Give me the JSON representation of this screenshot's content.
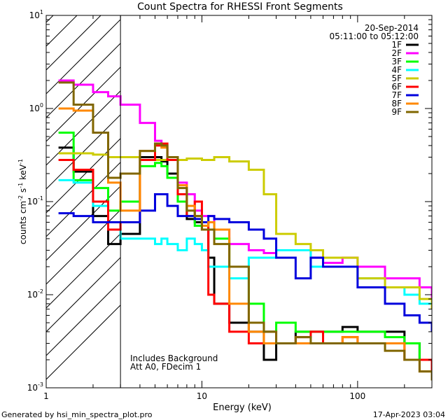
{
  "chart_data": {
    "type": "line",
    "title": "Count Spectra for RHESSI Front Segments",
    "date": "20-Sep-2014",
    "time_range": "05:11:00 to 05:12:00",
    "xlabel": "Energy (keV)",
    "ylabel_parts": {
      "a": "counts cm",
      "b": "-2",
      "c": " s",
      "d": "-1",
      "e": " keV",
      "f": "-1"
    },
    "xscale": "log",
    "yscale": "log",
    "xlim": [
      1,
      300
    ],
    "ylim": [
      0.001,
      10
    ],
    "x_ticks": [
      {
        "v": 1,
        "label": "1"
      },
      {
        "v": 10,
        "label": "10"
      },
      {
        "v": 100,
        "label": "100"
      }
    ],
    "y_ticks": [
      {
        "v": 0.001,
        "b": "10",
        "e": "-3"
      },
      {
        "v": 0.01,
        "b": "10",
        "e": "-2"
      },
      {
        "v": 0.1,
        "b": "10",
        "e": "-1"
      },
      {
        "v": 1,
        "b": "10",
        "e": "0"
      },
      {
        "v": 10,
        "b": "10",
        "e": "1"
      }
    ],
    "shaded_region_keV": [
      1,
      3
    ],
    "notes": [
      "Includes Background",
      "Att A0, FDecim 1"
    ],
    "energy_keV": [
      1.2,
      1.5,
      2,
      2.5,
      3,
      4,
      5,
      5.5,
      6,
      7,
      8,
      9,
      10,
      11,
      12,
      15,
      20,
      25,
      30,
      40,
      50,
      60,
      80,
      100,
      150,
      200,
      250,
      300
    ],
    "series": [
      {
        "name": "1F",
        "color": "#000000",
        "values": [
          0.38,
          0.21,
          0.07,
          0.035,
          0.045,
          0.3,
          0.3,
          0.27,
          0.2,
          0.1,
          0.065,
          0.06,
          0.05,
          0.025,
          0.008,
          0.005,
          0.004,
          0.002,
          0.003,
          0.004,
          0.004,
          0.004,
          0.0045,
          0.004,
          0.004,
          0.003,
          0.002,
          0.0015
        ]
      },
      {
        "name": "2F",
        "color": "#ff00ff",
        "values": [
          2.0,
          1.8,
          1.5,
          1.35,
          1.1,
          0.7,
          0.45,
          0.4,
          0.28,
          0.16,
          0.12,
          0.08,
          0.07,
          0.07,
          0.05,
          0.035,
          0.03,
          0.028,
          0.03,
          0.03,
          0.025,
          0.022,
          0.025,
          0.02,
          0.015,
          0.015,
          0.012,
          0.009
        ]
      },
      {
        "name": "3F",
        "color": "#00ff00",
        "values": [
          0.55,
          0.17,
          0.14,
          0.08,
          0.1,
          0.24,
          0.26,
          0.24,
          0.18,
          0.1,
          0.07,
          0.055,
          0.05,
          0.06,
          0.04,
          0.02,
          0.008,
          0.004,
          0.005,
          0.004,
          0.004,
          0.004,
          0.004,
          0.004,
          0.0035,
          0.003,
          0.002,
          0.0015
        ]
      },
      {
        "name": "4F",
        "color": "#00ffff",
        "values": [
          0.17,
          0.16,
          0.09,
          0.05,
          0.04,
          0.04,
          0.035,
          0.04,
          0.035,
          0.03,
          0.04,
          0.035,
          0.03,
          0.02,
          0.02,
          0.015,
          0.025,
          0.025,
          0.03,
          0.03,
          0.02,
          0.02,
          0.02,
          0.015,
          0.012,
          0.01,
          0.008,
          0.007
        ]
      },
      {
        "name": "5F",
        "color": "#cccc00",
        "values": [
          0.33,
          0.33,
          0.32,
          0.3,
          0.3,
          0.28,
          0.28,
          0.28,
          0.28,
          0.28,
          0.29,
          0.29,
          0.28,
          0.28,
          0.3,
          0.27,
          0.22,
          0.12,
          0.045,
          0.035,
          0.03,
          0.025,
          0.025,
          0.015,
          0.012,
          0.012,
          0.009,
          0.007
        ]
      },
      {
        "name": "6F",
        "color": "#ff0000",
        "values": [
          0.28,
          0.22,
          0.1,
          0.05,
          0.06,
          0.28,
          0.4,
          0.42,
          0.28,
          0.12,
          0.07,
          0.1,
          0.06,
          0.01,
          0.008,
          0.004,
          0.003,
          0.004,
          0.003,
          0.0035,
          0.004,
          0.003,
          0.0035,
          0.003,
          0.003,
          0.002,
          0.002,
          0.0015
        ]
      },
      {
        "name": "7F",
        "color": "#0000dd",
        "values": [
          0.075,
          0.07,
          0.06,
          0.06,
          0.06,
          0.08,
          0.12,
          0.12,
          0.09,
          0.07,
          0.07,
          0.065,
          0.06,
          0.07,
          0.065,
          0.06,
          0.05,
          0.04,
          0.025,
          0.015,
          0.025,
          0.02,
          0.02,
          0.012,
          0.008,
          0.006,
          0.005,
          0.004
        ]
      },
      {
        "name": "8F",
        "color": "#ff8800",
        "values": [
          1.0,
          0.95,
          0.55,
          0.16,
          0.08,
          0.35,
          0.42,
          0.38,
          0.3,
          0.15,
          0.09,
          0.07,
          0.055,
          0.06,
          0.05,
          0.008,
          0.004,
          0.003,
          0.003,
          0.003,
          0.003,
          0.003,
          0.0035,
          0.003,
          0.003,
          0.002,
          0.0015,
          0.0012
        ]
      },
      {
        "name": "9F",
        "color": "#806600",
        "values": [
          1.9,
          1.1,
          0.55,
          0.18,
          0.2,
          0.35,
          0.42,
          0.4,
          0.3,
          0.14,
          0.08,
          0.07,
          0.05,
          0.05,
          0.035,
          0.02,
          0.005,
          0.004,
          0.003,
          0.0035,
          0.003,
          0.003,
          0.003,
          0.003,
          0.0025,
          0.002,
          0.0015,
          0.0012
        ]
      }
    ]
  },
  "footer": {
    "generator": "Generated by hsi_min_spectra_plot.pro",
    "timestamp": "17-Apr-2023 03:04"
  }
}
